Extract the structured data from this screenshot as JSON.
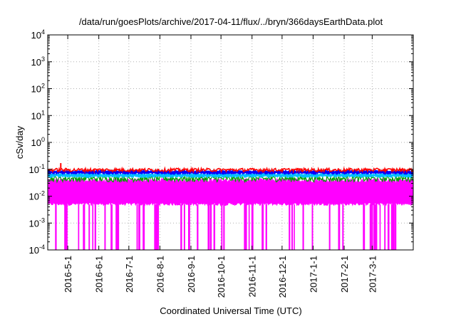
{
  "chart_data": {
    "type": "area",
    "title": "/data/run/goesPlots/archive/2017-04-11/flux/../bryn/366daysEarthData.plot",
    "xlabel": "Coordinated Universal Time (UTC)",
    "ylabel": "cSv/day",
    "yscale": "log",
    "ylim": [
      0.0001,
      10000
    ],
    "xlim": [
      "2016-04-11",
      "2017-04-11"
    ],
    "grid": true,
    "legend": "none",
    "y_ticks": [
      {
        "base": "10",
        "exp": "-4"
      },
      {
        "base": "10",
        "exp": "-3"
      },
      {
        "base": "10",
        "exp": "-2"
      },
      {
        "base": "10",
        "exp": "-1"
      },
      {
        "base": "10",
        "exp": "0"
      },
      {
        "base": "10",
        "exp": "1"
      },
      {
        "base": "10",
        "exp": "2"
      },
      {
        "base": "10",
        "exp": "3"
      },
      {
        "base": "10",
        "exp": "4"
      }
    ],
    "x_ticks": [
      "2016-5-1",
      "2016-6-1",
      "2016-7-1",
      "2016-8-1",
      "2016-9-1",
      "2016-10-1",
      "2016-11-1",
      "2016-12-1",
      "2017-1-1",
      "2017-2-1",
      "2017-3-1"
    ],
    "series": [
      {
        "color": "#ff0000",
        "y_typical": 0.095,
        "y_peak": 0.17
      },
      {
        "color": "#0000ff",
        "y_typical": 0.075
      },
      {
        "color": "#00c0ff",
        "y_typical": 0.06
      },
      {
        "color": "#00a000",
        "y_typical": 0.045
      },
      {
        "color": "#ff00ff",
        "y_max": 0.04,
        "y_min_typical": 0.005,
        "y_dropouts": 0.0001
      }
    ]
  }
}
